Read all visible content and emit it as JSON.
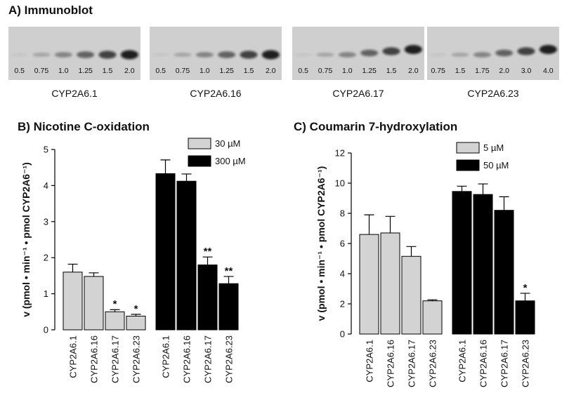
{
  "immunoblot": {
    "title": "A) Immunoblot",
    "blots": [
      {
        "caption": "CYP2A6.1",
        "lanes": [
          "0.5",
          "0.75",
          "1.0",
          "1.25",
          "1.5",
          "2.0"
        ]
      },
      {
        "caption": "CYP2A6.16",
        "lanes": [
          "0.5",
          "0.75",
          "1.0",
          "1.25",
          "1.5",
          "2.0"
        ]
      },
      {
        "caption": "CYP2A6.17",
        "lanes": [
          "0.5",
          "0.75",
          "1.0",
          "1.25",
          "1.5",
          "2.0"
        ]
      },
      {
        "caption": "CYP2A6.23",
        "lanes": [
          "0.75",
          "1.5",
          "1.75",
          "2.0",
          "3.0",
          "4.0"
        ]
      }
    ]
  },
  "chart_data": [
    {
      "type": "bar",
      "title": "B) Nicotine C-oxidation",
      "ylabel": "v (pmol • min⁻¹ • pmol CYP2A6⁻¹)",
      "categories": [
        "CYP2A6.1",
        "CYP2A6.16",
        "CYP2A6.17",
        "CYP2A6.23"
      ],
      "series": [
        {
          "name": "30 µM",
          "color": "#d3d3d3",
          "values": [
            1.6,
            1.48,
            0.5,
            0.38
          ],
          "errors": [
            0.22,
            0.1,
            0.06,
            0.05
          ],
          "annotations": [
            null,
            null,
            "*",
            "*"
          ]
        },
        {
          "name": "300 µM",
          "color": "#000000",
          "values": [
            4.33,
            4.12,
            1.8,
            1.28
          ],
          "errors": [
            0.38,
            0.2,
            0.22,
            0.2
          ],
          "annotations": [
            null,
            null,
            "**",
            "**"
          ]
        }
      ],
      "ylim": [
        0,
        5
      ],
      "yticks": [
        0,
        1,
        2,
        3,
        4,
        5
      ]
    },
    {
      "type": "bar",
      "title": "C) Coumarin 7-hydroxylation",
      "ylabel": "v (pmol • min⁻¹ • pmol CYP2A6⁻¹)",
      "categories": [
        "CYP2A6.1",
        "CYP2A6.16",
        "CYP2A6.17",
        "CYP2A6.23"
      ],
      "series": [
        {
          "name": "5 µM",
          "color": "#d3d3d3",
          "values": [
            6.6,
            6.7,
            5.15,
            2.2
          ],
          "errors": [
            1.3,
            1.1,
            0.65,
            0.07
          ],
          "annotations": [
            null,
            null,
            null,
            null
          ]
        },
        {
          "name": "50 µM",
          "color": "#000000",
          "values": [
            9.45,
            9.25,
            8.2,
            2.2
          ],
          "errors": [
            0.35,
            0.7,
            0.9,
            0.5
          ],
          "annotations": [
            null,
            null,
            null,
            "*"
          ]
        }
      ],
      "ylim": [
        0,
        12
      ],
      "yticks": [
        0,
        2,
        4,
        6,
        8,
        10,
        12
      ]
    }
  ]
}
